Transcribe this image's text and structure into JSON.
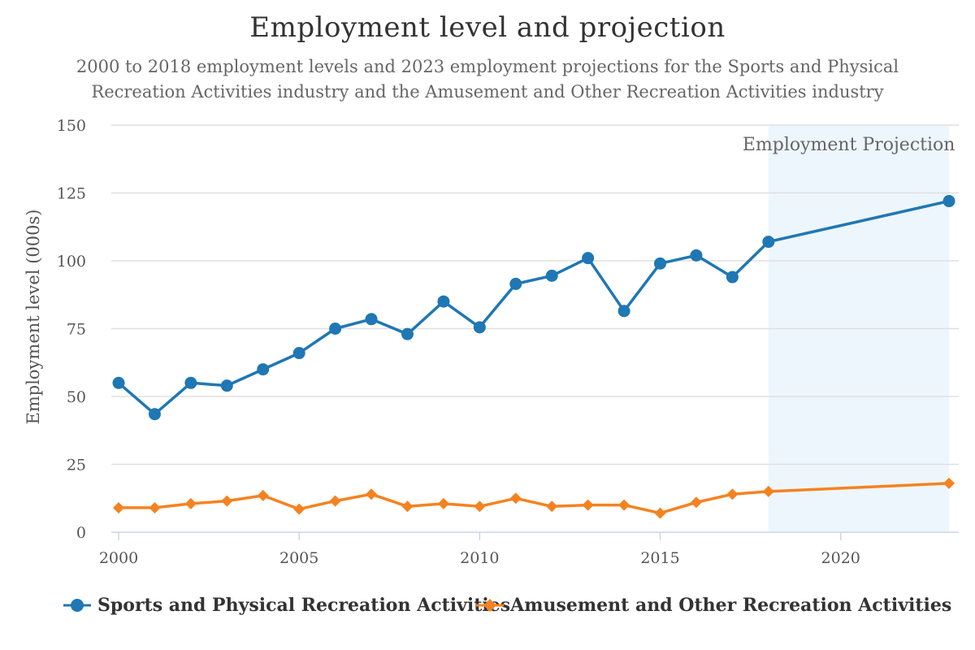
{
  "chart_data": {
    "type": "line",
    "title": "Employment level and projection",
    "subtitle_line1": "2000 to 2018 employment levels and 2023 employment projections for the Sports and Physical",
    "subtitle_line2": "Recreation Activities industry and the Amusement and Other Recreation Activities industry",
    "ylabel": "Employment level (000s)",
    "xlabel": "",
    "ylim": [
      0,
      150
    ],
    "xlim": [
      2000,
      2023
    ],
    "yticks": [
      0,
      25,
      50,
      75,
      100,
      125,
      150
    ],
    "xticks": [
      2000,
      2005,
      2010,
      2015,
      2020
    ],
    "grid": true,
    "projection_band": {
      "label": "Employment Projection",
      "from": 2018,
      "to": 2023
    },
    "series": [
      {
        "name": "Sports and Physical Recreation Activities",
        "color": "#1f77b4",
        "marker": "circle",
        "x": [
          2000,
          2001,
          2002,
          2003,
          2004,
          2005,
          2006,
          2007,
          2008,
          2009,
          2010,
          2011,
          2012,
          2013,
          2014,
          2015,
          2016,
          2017,
          2018,
          2023
        ],
        "values": [
          55,
          43.5,
          55,
          54,
          60,
          66,
          75,
          78.5,
          73,
          85,
          75.5,
          91.5,
          94.5,
          101,
          81.5,
          99,
          102,
          94,
          107,
          122
        ]
      },
      {
        "name": "Amusement and Other Recreation Activities",
        "color": "#f58220",
        "marker": "diamond",
        "x": [
          2000,
          2001,
          2002,
          2003,
          2004,
          2005,
          2006,
          2007,
          2008,
          2009,
          2010,
          2011,
          2012,
          2013,
          2014,
          2015,
          2016,
          2017,
          2018,
          2023
        ],
        "values": [
          9,
          9,
          10.5,
          11.5,
          13.5,
          8.5,
          11.5,
          14,
          9.5,
          10.5,
          9.5,
          12.5,
          9.5,
          10,
          10,
          7,
          11,
          14,
          15,
          18
        ]
      }
    ],
    "colors": {
      "band": "#eef6fd",
      "grid": "#e0e0e0",
      "axis": "#ccd6eb",
      "tick_text": "#555555",
      "band_text": "#666666"
    }
  }
}
